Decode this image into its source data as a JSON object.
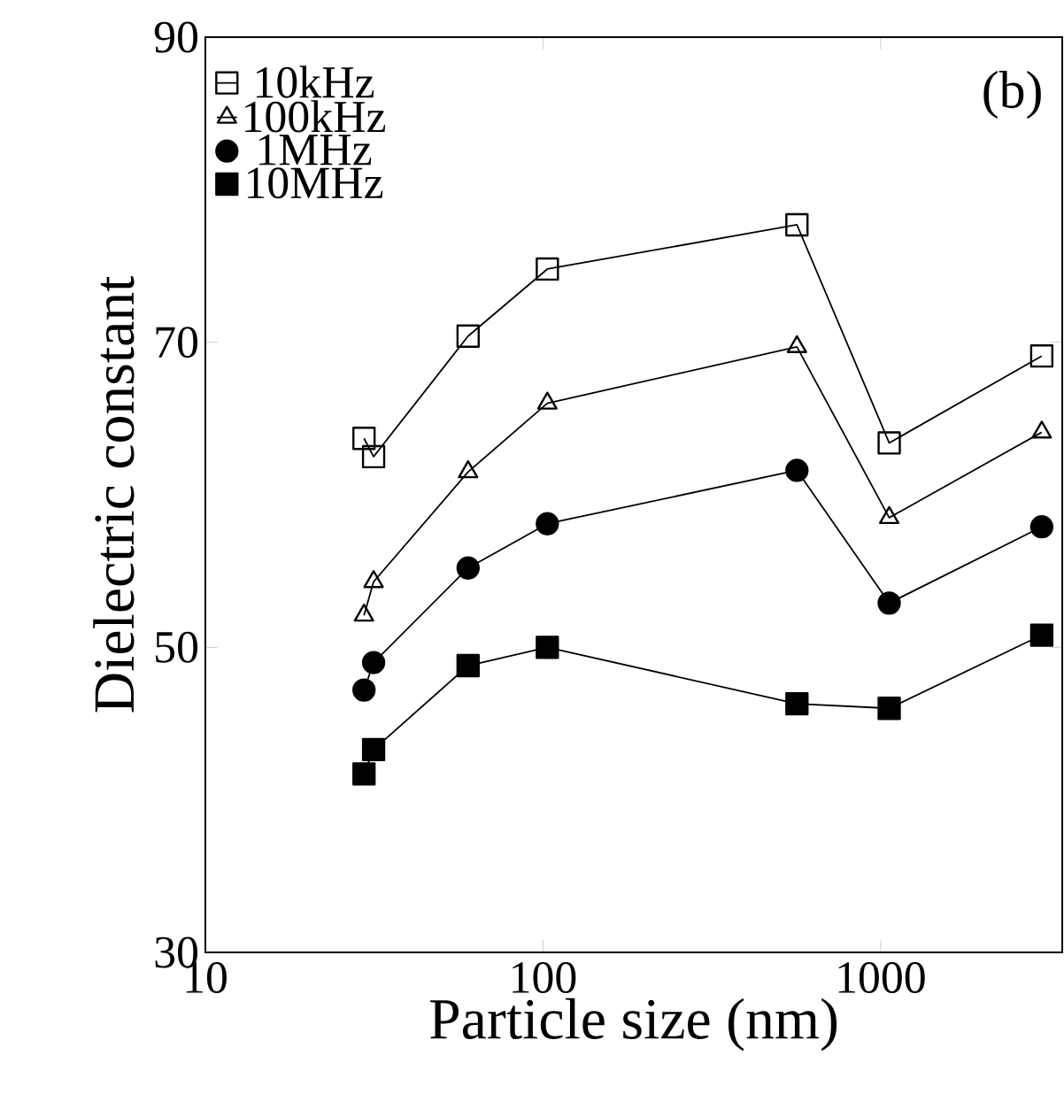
{
  "chart_data": {
    "type": "line",
    "xlabel": "Particle size (nm)",
    "ylabel": "Dielectric constant",
    "annotations": [
      "(b)"
    ],
    "log": "x",
    "xlim": [
      10,
      3450
    ],
    "xticks": [
      10,
      100,
      1000
    ],
    "ylim": [
      30,
      90
    ],
    "yticks": [
      30,
      50,
      70,
      90
    ],
    "grid": false,
    "legend": "top left",
    "series": [
      {
        "name": "10kHz",
        "color": "#000000",
        "marker": "square",
        "x": [
          29.5,
          31.5,
          60,
          103,
          565,
          1060,
          3000
        ],
        "values": [
          63.7,
          62.5,
          70.4,
          74.8,
          77.7,
          63.4,
          69.1
        ]
      },
      {
        "name": "100kHz",
        "color": "#000000",
        "marker": "triangle",
        "x": [
          29.5,
          31.5,
          60,
          103,
          565,
          1060,
          3000
        ],
        "values": [
          52.1,
          54.3,
          61.5,
          66.0,
          69.7,
          58.5,
          64.1
        ]
      },
      {
        "name": "1MHz",
        "color": "#000000",
        "marker": "circle",
        "x": [
          29.5,
          31.5,
          60,
          103,
          565,
          1060,
          3000
        ],
        "values": [
          47.2,
          49.0,
          55.2,
          58.1,
          61.6,
          52.9,
          57.9
        ]
      },
      {
        "name": "10MHz",
        "color": "#000000",
        "marker": "square",
        "x": [
          29.5,
          31.5,
          60,
          103,
          565,
          1060,
          3000
        ],
        "values": [
          41.7,
          43.3,
          48.8,
          50.0,
          46.3,
          46.0,
          50.8
        ]
      }
    ]
  }
}
